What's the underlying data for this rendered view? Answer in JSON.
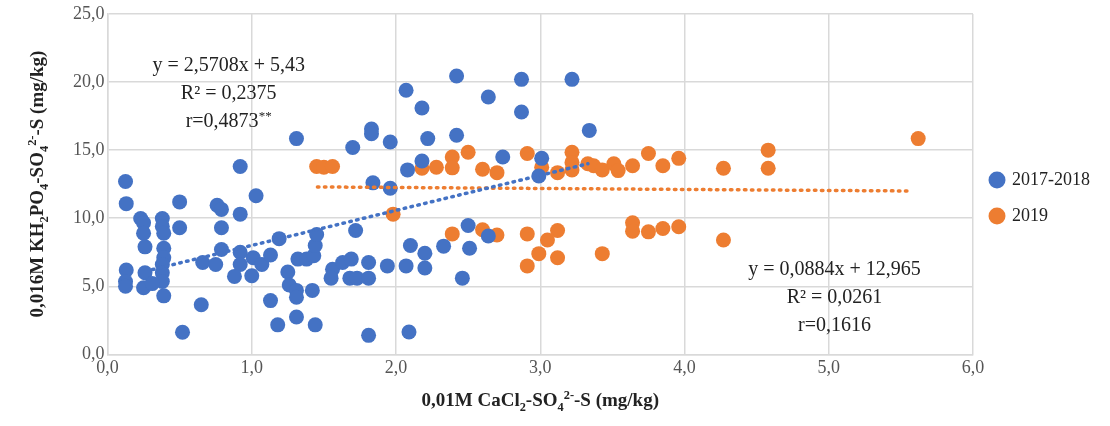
{
  "chart_data": {
    "type": "scatter",
    "xlabel": "0,01M CaCl$_{2}$-SO$_{4}$$^{2-}$-S (mg/kg)",
    "ylabel": "0,016M KH$_{2}$PO$_{4}$-SO$_{4}$$^{2-}$-S (mg/kg)",
    "xlim": [
      0,
      6
    ],
    "xticks": [
      {
        "value": 0,
        "label": "0,0"
      },
      {
        "value": 1,
        "label": "1,0"
      },
      {
        "value": 2,
        "label": "2,0"
      },
      {
        "value": 3,
        "label": "3,0"
      },
      {
        "value": 4,
        "label": "4,0"
      },
      {
        "value": 5,
        "label": "5,0"
      },
      {
        "value": 6,
        "label": "6,0"
      }
    ],
    "ylim": [
      0,
      25
    ],
    "yticks": [
      {
        "value": 0,
        "label": "0,0"
      },
      {
        "value": 5,
        "label": "5,0"
      },
      {
        "value": 10,
        "label": "10,0"
      },
      {
        "value": 15,
        "label": "15,0"
      },
      {
        "value": 20,
        "label": "20,0"
      },
      {
        "value": 25,
        "label": "25,0"
      }
    ],
    "grid": true,
    "legend": "right",
    "marker": "circle",
    "series": [
      {
        "name": "2017-2018",
        "color": "#4472c4",
        "x": [
          0.125,
          0.13,
          0.23,
          0.25,
          0.25,
          0.26,
          0.38,
          0.38,
          0.39,
          0.39,
          0.39,
          0.38,
          0.38,
          0.38,
          0.39,
          0.13,
          0.125,
          0.125,
          0.26,
          0.25,
          0.31,
          0.5,
          0.5,
          0.65,
          0.52,
          0.66,
          0.75,
          0.76,
          0.79,
          0.79,
          0.79,
          0.92,
          0.92,
          0.92,
          0.92,
          0.88,
          1.0,
          1.01,
          1.03,
          1.07,
          1.13,
          1.19,
          1.13,
          1.18,
          1.25,
          1.26,
          1.31,
          1.31,
          1.31,
          1.44,
          1.42,
          1.32,
          1.38,
          1.43,
          1.44,
          1.45,
          1.72,
          1.56,
          1.55,
          1.63,
          1.69,
          1.68,
          1.73,
          1.81,
          1.81,
          1.81,
          1.94,
          2.07,
          2.1,
          2.09,
          1.84,
          1.96,
          2.08,
          1.7,
          1.31,
          2.07,
          1.83,
          1.83,
          1.96,
          2.42,
          2.87,
          3.22,
          2.64,
          2.18,
          2.87,
          3.34,
          2.22,
          2.42,
          2.74,
          3.01,
          2.18,
          2.99,
          2.5,
          2.64,
          2.2,
          2.33,
          2.51,
          2.2,
          2.46
        ],
        "values": [
          12.7,
          11.07,
          9.98,
          9.67,
          8.9,
          7.9,
          9.98,
          9.4,
          8.9,
          7.8,
          7.1,
          6.6,
          6.0,
          5.35,
          4.3,
          6.2,
          5.35,
          5.0,
          6.0,
          4.9,
          5.2,
          11.2,
          9.3,
          3.65,
          1.63,
          6.75,
          6.6,
          10.95,
          10.65,
          9.3,
          7.7,
          13.8,
          10.3,
          7.5,
          6.6,
          5.73,
          5.78,
          7.1,
          11.65,
          6.6,
          7.3,
          8.5,
          3.95,
          2.17,
          6.05,
          5.1,
          4.7,
          4.2,
          2.75,
          2.17,
          4.7,
          7.0,
          7.0,
          7.25,
          8.0,
          8.8,
          9.1,
          6.25,
          5.6,
          6.75,
          7.0,
          5.6,
          5.6,
          6.75,
          5.6,
          1.4,
          6.5,
          6.5,
          8.0,
          1.65,
          12.6,
          12.2,
          13.55,
          15.2,
          15.85,
          19.4,
          16.55,
          16.2,
          15.6,
          20.45,
          20.2,
          20.2,
          18.9,
          18.1,
          17.8,
          16.45,
          15.85,
          16.1,
          14.5,
          14.4,
          14.2,
          13.1,
          9.47,
          8.7,
          7.43,
          7.95,
          7.8,
          6.35,
          5.6
        ]
      },
      {
        "name": "2019",
        "color": "#ed7d31",
        "x": [
          1.45,
          1.5,
          1.56,
          1.98,
          2.18,
          2.28,
          2.39,
          2.39,
          2.5,
          2.6,
          2.7,
          2.91,
          3.01,
          3.12,
          3.22,
          3.22,
          3.22,
          3.33,
          3.37,
          3.43,
          3.51,
          3.54,
          3.64,
          3.75,
          3.85,
          3.96,
          4.27,
          4.58,
          4.58,
          5.62,
          2.39,
          2.6,
          2.7,
          2.91,
          3.12,
          3.05,
          2.99,
          3.12,
          2.91,
          3.43,
          3.64,
          3.64,
          3.75,
          3.85,
          3.96,
          4.27
        ],
        "values": [
          13.8,
          13.75,
          13.8,
          10.3,
          13.67,
          13.75,
          14.5,
          13.7,
          14.85,
          13.6,
          13.35,
          14.75,
          13.75,
          13.35,
          14.85,
          14.1,
          13.55,
          14.0,
          13.85,
          13.55,
          14.0,
          13.5,
          13.85,
          14.75,
          13.85,
          14.4,
          13.67,
          15.0,
          13.67,
          15.85,
          8.85,
          9.15,
          8.77,
          8.85,
          9.1,
          8.4,
          7.4,
          7.1,
          6.5,
          7.4,
          9.67,
          9.05,
          9.0,
          9.25,
          9.37,
          8.4
        ]
      },
      {
        "type": "line",
        "color": "#4472c4",
        "marker": "none",
        "line_style": "dotted",
        "x": [
          0.3,
          3.33
        ],
        "values": [
          6.2,
          14.0
        ]
      },
      {
        "type": "line",
        "color": "#ed7d31",
        "marker": "none",
        "line_style": "dotted",
        "x": [
          1.45,
          5.58
        ],
        "values": [
          12.3,
          12.0
        ]
      }
    ],
    "annotations": [
      "y = 2,5708x + 5,43",
      "R² = 0,2375",
      "r=0,4873$^{**}$",
      "y = 0,0884x + 12,965",
      "R² = 0,0261",
      "r=0,1616"
    ]
  }
}
